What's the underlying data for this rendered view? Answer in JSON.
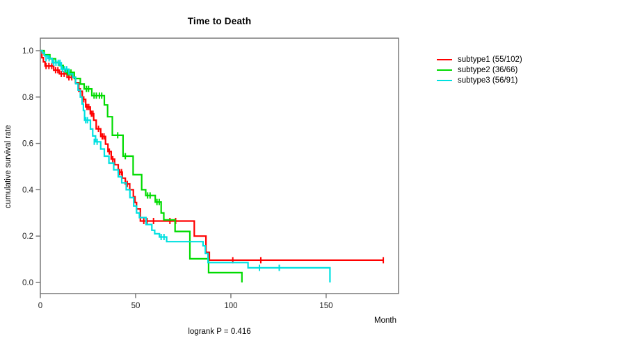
{
  "title": "Time to Death",
  "axes": {
    "x_label": "Month",
    "y_label": "cumulative survival rate"
  },
  "footnote": "logrank P = 0.416",
  "colors": {
    "axis": "#707070",
    "tick_text": "#1c1c1c",
    "background": "#ffffff"
  },
  "chart_data": {
    "type": "line",
    "variant": "kaplan-meier-step",
    "title": "Time to Death",
    "xlabel": "Month",
    "ylabel": "cumulative survival rate",
    "annotation": "logrank P = 0.416",
    "legend_position": "right-outside",
    "grid": false,
    "xlim": [
      0,
      188
    ],
    "ylim": [
      -0.048,
      1.054
    ],
    "xticks": [
      0,
      50,
      100,
      150
    ],
    "yticks": [
      0.0,
      0.2,
      0.4,
      0.6,
      0.8,
      1.0
    ],
    "series": [
      {
        "name": "subtype1 (55/102)",
        "color": "#ff0000",
        "steps": [
          [
            0,
            1
          ],
          [
            0.8,
            0.97
          ],
          [
            1.6,
            0.952
          ],
          [
            2.5,
            0.934
          ],
          [
            7,
            0.916
          ],
          [
            10,
            0.9
          ],
          [
            14,
            0.885
          ],
          [
            18.4,
            0.862
          ],
          [
            20.2,
            0.825
          ],
          [
            22,
            0.79
          ],
          [
            23.8,
            0.757
          ],
          [
            26.2,
            0.728
          ],
          [
            28,
            0.7
          ],
          [
            29.3,
            0.663
          ],
          [
            31.7,
            0.63
          ],
          [
            34.2,
            0.597
          ],
          [
            35.5,
            0.565
          ],
          [
            37.2,
            0.532
          ],
          [
            39,
            0.508
          ],
          [
            40.9,
            0.476
          ],
          [
            43,
            0.45
          ],
          [
            44.6,
            0.425
          ],
          [
            46.9,
            0.4
          ],
          [
            48.8,
            0.37
          ],
          [
            49.7,
            0.345
          ],
          [
            50.5,
            0.317
          ],
          [
            52.5,
            0.265
          ],
          [
            80.8,
            0.2
          ],
          [
            86.9,
            0.13
          ],
          [
            88.7,
            0.096
          ],
          [
            180,
            0.096
          ]
        ],
        "censors": [
          [
            3,
            0.934
          ],
          [
            4.5,
            0.934
          ],
          [
            6,
            0.934
          ],
          [
            8,
            0.916
          ],
          [
            9.2,
            0.916
          ],
          [
            11,
            0.9
          ],
          [
            12.5,
            0.9
          ],
          [
            15,
            0.885
          ],
          [
            16.5,
            0.885
          ],
          [
            21,
            0.825
          ],
          [
            22.8,
            0.79
          ],
          [
            24.5,
            0.757
          ],
          [
            25.4,
            0.757
          ],
          [
            26.8,
            0.728
          ],
          [
            27.6,
            0.728
          ],
          [
            30.5,
            0.663
          ],
          [
            32.5,
            0.63
          ],
          [
            33.4,
            0.63
          ],
          [
            36.2,
            0.565
          ],
          [
            38,
            0.532
          ],
          [
            41.6,
            0.476
          ],
          [
            42.6,
            0.476
          ],
          [
            45.6,
            0.425
          ],
          [
            54.3,
            0.265
          ],
          [
            56,
            0.265
          ],
          [
            59.4,
            0.265
          ],
          [
            68,
            0.265
          ],
          [
            71,
            0.265
          ],
          [
            101,
            0.096
          ],
          [
            115.7,
            0.096
          ],
          [
            180,
            0.096
          ]
        ]
      },
      {
        "name": "subtype2 (36/66)",
        "color": "#00db00",
        "steps": [
          [
            0,
            1
          ],
          [
            2,
            0.982
          ],
          [
            5,
            0.965
          ],
          [
            8,
            0.95
          ],
          [
            10,
            0.936
          ],
          [
            12,
            0.92
          ],
          [
            13.5,
            0.906
          ],
          [
            17.8,
            0.88
          ],
          [
            21,
            0.856
          ],
          [
            23,
            0.835
          ],
          [
            27,
            0.806
          ],
          [
            33.6,
            0.766
          ],
          [
            35.3,
            0.715
          ],
          [
            37.8,
            0.635
          ],
          [
            43.4,
            0.545
          ],
          [
            48.7,
            0.465
          ],
          [
            53.2,
            0.4
          ],
          [
            55.3,
            0.375
          ],
          [
            60.3,
            0.347
          ],
          [
            63.4,
            0.3
          ],
          [
            64.8,
            0.27
          ],
          [
            70.7,
            0.22
          ],
          [
            78.5,
            0.102
          ],
          [
            88.3,
            0.042
          ],
          [
            105.8,
            0
          ]
        ],
        "censors": [
          [
            14.3,
            0.906
          ],
          [
            15.2,
            0.906
          ],
          [
            16.1,
            0.906
          ],
          [
            24.2,
            0.835
          ],
          [
            25.3,
            0.835
          ],
          [
            28.2,
            0.806
          ],
          [
            29.4,
            0.806
          ],
          [
            31,
            0.806
          ],
          [
            32.2,
            0.806
          ],
          [
            40.6,
            0.635
          ],
          [
            44.6,
            0.545
          ],
          [
            56.3,
            0.375
          ],
          [
            57.6,
            0.375
          ],
          [
            61.2,
            0.347
          ],
          [
            62.4,
            0.347
          ]
        ]
      },
      {
        "name": "subtype3 (56/91)",
        "color": "#00e0e0",
        "steps": [
          [
            0,
            1
          ],
          [
            1,
            0.99
          ],
          [
            2.2,
            0.978
          ],
          [
            4,
            0.967
          ],
          [
            6.2,
            0.948
          ],
          [
            11,
            0.92
          ],
          [
            15,
            0.9
          ],
          [
            17,
            0.885
          ],
          [
            18.5,
            0.858
          ],
          [
            19.8,
            0.83
          ],
          [
            21,
            0.8
          ],
          [
            21.9,
            0.77
          ],
          [
            22.6,
            0.742
          ],
          [
            23.2,
            0.7
          ],
          [
            26.3,
            0.662
          ],
          [
            27.5,
            0.632
          ],
          [
            29,
            0.607
          ],
          [
            31.7,
            0.576
          ],
          [
            33.6,
            0.545
          ],
          [
            36,
            0.515
          ],
          [
            38.5,
            0.486
          ],
          [
            40.9,
            0.456
          ],
          [
            42.7,
            0.43
          ],
          [
            45.1,
            0.4
          ],
          [
            47,
            0.366
          ],
          [
            49,
            0.33
          ],
          [
            50.5,
            0.3
          ],
          [
            52,
            0.28
          ],
          [
            55.5,
            0.25
          ],
          [
            58.5,
            0.225
          ],
          [
            60,
            0.21
          ],
          [
            62.5,
            0.196
          ],
          [
            66.3,
            0.176
          ],
          [
            85.4,
            0.158
          ],
          [
            86.6,
            0.125
          ],
          [
            88,
            0.086
          ],
          [
            109,
            0.063
          ],
          [
            152,
            0
          ]
        ],
        "censors": [
          [
            3,
            0.967
          ],
          [
            4.6,
            0.967
          ],
          [
            7,
            0.948
          ],
          [
            8.2,
            0.948
          ],
          [
            9.4,
            0.948
          ],
          [
            10.3,
            0.948
          ],
          [
            11.6,
            0.92
          ],
          [
            12.7,
            0.92
          ],
          [
            13.8,
            0.92
          ],
          [
            23.8,
            0.7
          ],
          [
            24.7,
            0.7
          ],
          [
            28.3,
            0.607
          ],
          [
            29.8,
            0.607
          ],
          [
            63.4,
            0.196
          ],
          [
            64.9,
            0.196
          ],
          [
            115,
            0.063
          ],
          [
            125.4,
            0.063
          ]
        ]
      }
    ]
  }
}
